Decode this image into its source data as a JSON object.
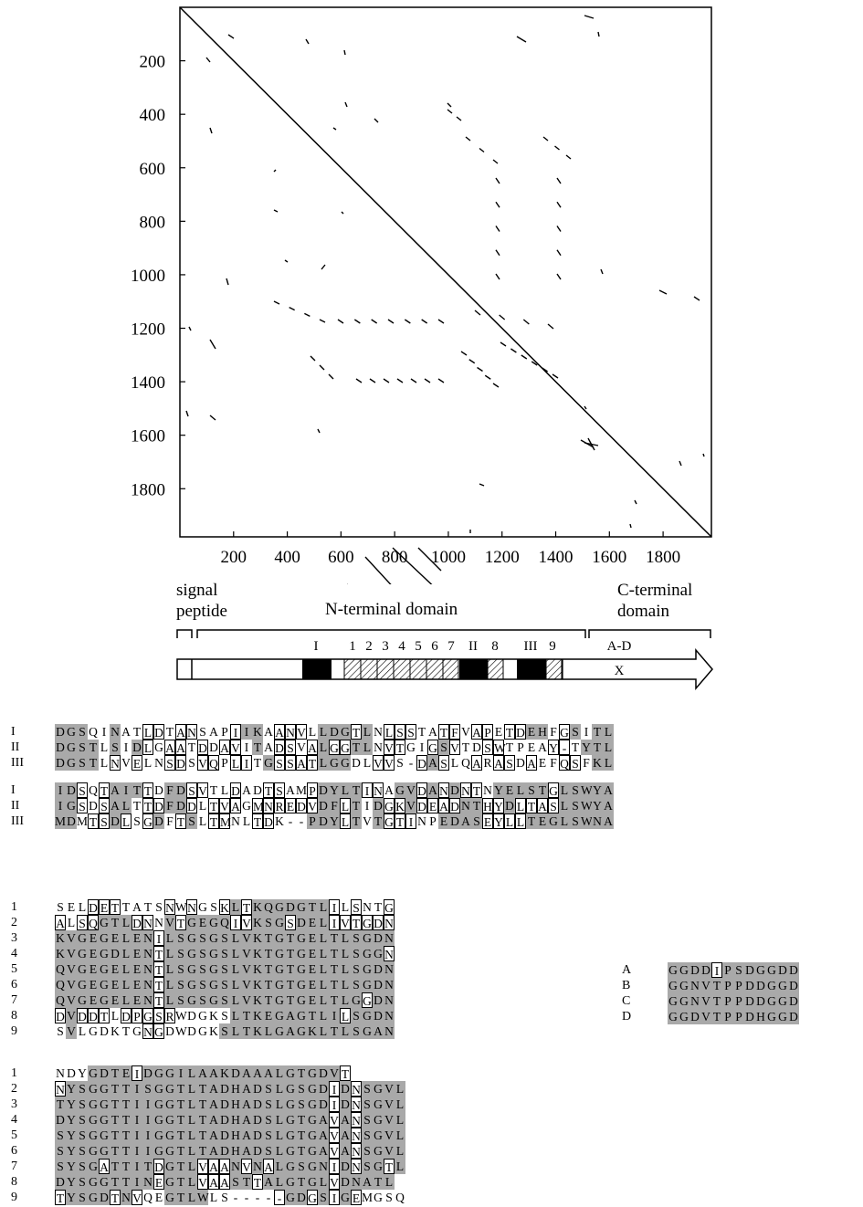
{
  "dotplot": {
    "y_ticks": [
      "200",
      "400",
      "600",
      "800",
      "1000",
      "1200",
      "1400",
      "1600",
      "1800"
    ],
    "x_ticks": [
      "200",
      "400",
      "600",
      "800",
      "1000",
      "1200",
      "1400",
      "1600",
      "1800"
    ],
    "range": [
      0,
      1980
    ]
  },
  "domain_map": {
    "signal_label_line1": "signal",
    "signal_label_line2": "peptide",
    "n_domain_label": "N-terminal domain",
    "c_domain_label_line1": "C-terminal",
    "c_domain_label_line2": "domain",
    "repeat_labels": [
      "I",
      "1",
      "2",
      "3",
      "4",
      "5",
      "6",
      "7",
      "II",
      "8",
      "III",
      "9"
    ],
    "c_repeat_label": "A-D",
    "arrow_label": "X"
  },
  "alignment_top": {
    "block1": {
      "labels": [
        "I",
        "II",
        "III"
      ],
      "rows": [
        "DGSQINATLDTANSAPIIKAANVLLDGTLNLSSTATFVAPETDEHFGSITL",
        "DGSTLSIDLGAATDDAVITADSVALGGTLNVTGIGSVTDSWTPEAY-TYTL",
        "DGSTLNVELNSDSVQPLITGSSATLGGDLVVS-DASLQARASDAEFQSFKL"
      ]
    },
    "block2": {
      "labels": [
        "I",
        "II",
        "III"
      ],
      "rows": [
        "IDSQTAITTDFDSVTLDADTSAMPDYLTINAGVDANDNTNYELSTGLSWYA",
        "IGSDSALTTDFDDLTVAGMNREDVDFLTIDGKVDEADNTHYDLTASLSWYA",
        "MDMTSDLSGDFTSLTMNLTDK--PDYLTVTGTINPEDASEYLLTEGLSWNA"
      ]
    }
  },
  "alignment_repeats": {
    "block1": {
      "labels": [
        "1",
        "2",
        "3",
        "4",
        "5",
        "6",
        "7",
        "8",
        "9"
      ],
      "rows": [
        "SELDETTATSNWNGSKLTKQGDGTLILSNTG",
        "ALSQGTLDNNVTGEGQIVKSGSDELIVTGDN",
        "KVGEGELENILSGSGSLVKTGTGELTLSGDN",
        "KVGEGDLENTLSGSGSLVKTGTGELTLSGGN",
        "QVGEGELENTLSGSGSLVKTGTGELTLSGDN",
        "QVGEGELENTLSGSGSLVKTGTGELTLSGDN",
        "QVGEGELENTLSGSGSLVKTGTGELTLGGDN",
        "DVDDTLDPGSRWDGKSLTKEGAGTLILSGDN",
        "SVLGDKTGNGDWDGKSLTKLGAGKLTLSGAN"
      ]
    },
    "block2": {
      "labels": [
        "1",
        "2",
        "3",
        "4",
        "5",
        "6",
        "7",
        "8",
        "9"
      ],
      "rows": [
        "NDYGDTEIDGGILAAKDAAALGTGDVT",
        "NYSGGTTISGGTLTADHADSLGSGDIDNSGVL",
        "TYSGGTTIIGGTLTADHADSLGSGDIDNSGVL",
        "DYSGGTTIIGGTLTADHADSLGTGAVANSGVL",
        "SYSGGTTIIGGTLTADHADSLGTGAVANSGVL",
        "SYSGGTTIIGGTLTADHADSLGTGAVANSGVL",
        "SYSGATTITDGTLVAANVNALGSGNIDNSGTL",
        "DYSGGTTINEGTLVAASTTALGTGLVDNATL",
        "TYSGDTNVQEGTLWLS-----GDGSIGEMGSQ"
      ]
    }
  },
  "alignment_c": {
    "labels": [
      "A",
      "B",
      "C",
      "D"
    ],
    "rows": [
      "GGDDIPSDGGDD",
      "GGNVTPPDDGGD",
      "GGNVTPPDDGGD",
      "GGDVTPPDHGGD"
    ]
  }
}
